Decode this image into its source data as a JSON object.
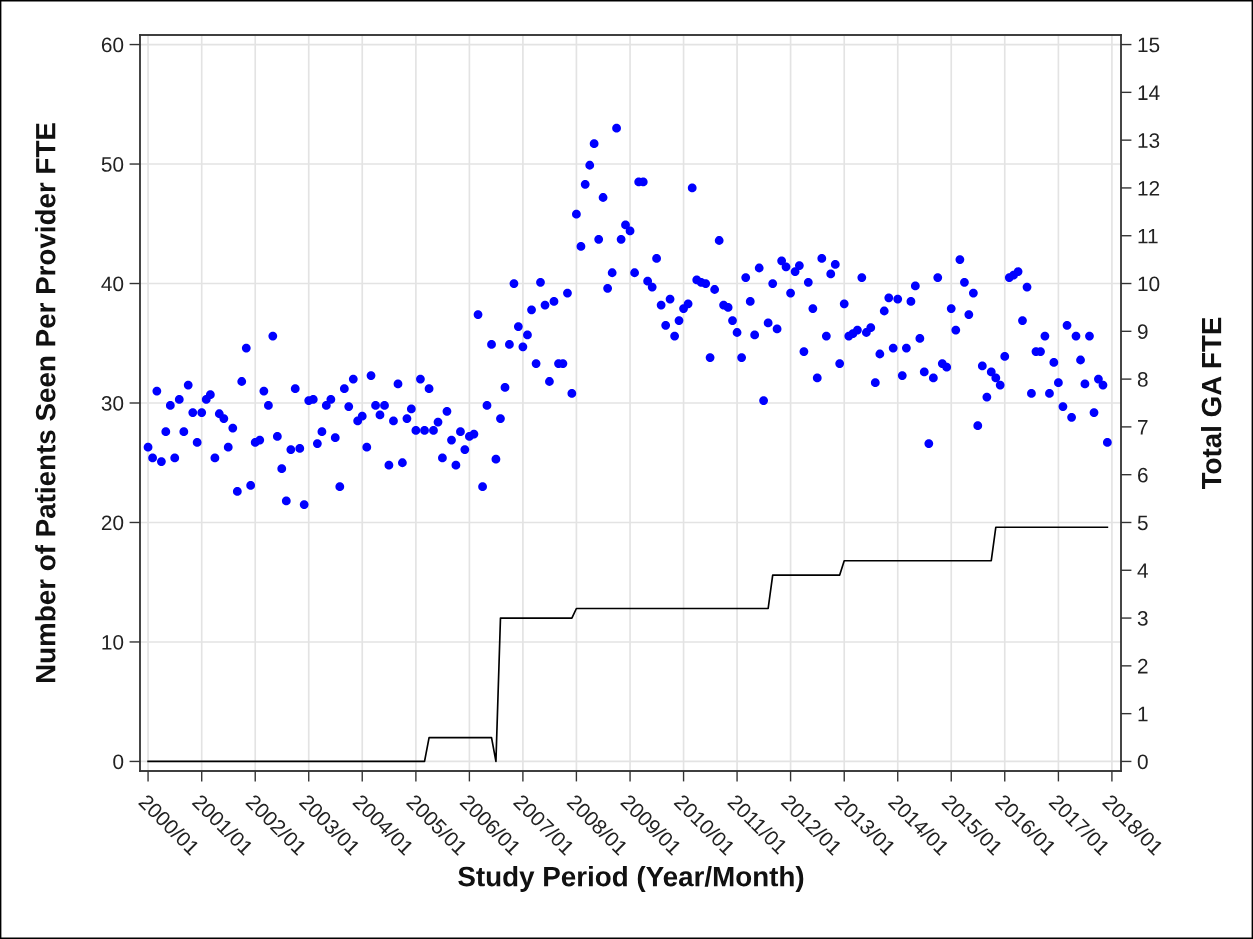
{
  "chart_data": {
    "type": "scatter",
    "xlabel": "Study Period (Year/Month)",
    "ylabel": "Number of Patients Seen Per Provider FTE",
    "y2label": "Total GA FTE",
    "xlim": [
      "1999-11-07",
      "2018-03-04"
    ],
    "xticks": [
      {
        "value": "2000-01",
        "label": "2000/01"
      },
      {
        "value": "2001-01",
        "label": "2001/01"
      },
      {
        "value": "2002-01",
        "label": "2002/01"
      },
      {
        "value": "2003-01",
        "label": "2003/01"
      },
      {
        "value": "2004-01",
        "label": "2004/01"
      },
      {
        "value": "2005-01",
        "label": "2005/01"
      },
      {
        "value": "2006-01",
        "label": "2006/01"
      },
      {
        "value": "2007-01",
        "label": "2007/01"
      },
      {
        "value": "2008-01",
        "label": "2008/01"
      },
      {
        "value": "2009-01",
        "label": "2009/01"
      },
      {
        "value": "2010-01",
        "label": "2010/01"
      },
      {
        "value": "2011-01",
        "label": "2011/01"
      },
      {
        "value": "2012-01",
        "label": "2012/01"
      },
      {
        "value": "2013-01",
        "label": "2013/01"
      },
      {
        "value": "2014-01",
        "label": "2014/01"
      },
      {
        "value": "2015-01",
        "label": "2015/01"
      },
      {
        "value": "2016-01",
        "label": "2016/01"
      },
      {
        "value": "2017-01",
        "label": "2017/01"
      },
      {
        "value": "2018-01",
        "label": "2018/01"
      }
    ],
    "ylim": [
      -0.8,
      60.8
    ],
    "yticks": [
      0,
      10,
      20,
      30,
      40,
      50,
      60
    ],
    "y2lim": [
      -0.2,
      15.2
    ],
    "y2ticks": [
      0,
      1,
      2,
      3,
      4,
      5,
      6,
      7,
      8,
      9,
      10,
      11,
      12,
      13,
      14,
      15
    ],
    "grid": true,
    "series": [
      {
        "color": "#0000ff",
        "marker": "circle",
        "x": [
          "2000-01",
          "2000-02",
          "2000-03",
          "2000-04",
          "2000-05",
          "2000-06",
          "2000-07",
          "2000-08",
          "2000-09",
          "2000-10",
          "2000-11",
          "2000-12",
          "2001-01",
          "2001-02",
          "2001-03",
          "2001-04",
          "2001-05",
          "2001-06",
          "2001-07",
          "2001-08",
          "2001-09",
          "2001-10",
          "2001-11",
          "2001-12",
          "2002-01",
          "2002-02",
          "2002-03",
          "2002-04",
          "2002-05",
          "2002-06",
          "2002-07",
          "2002-08",
          "2002-09",
          "2002-10",
          "2002-11",
          "2002-12",
          "2003-01",
          "2003-02",
          "2003-03",
          "2003-04",
          "2003-05",
          "2003-06",
          "2003-07",
          "2003-08",
          "2003-09",
          "2003-10",
          "2003-11",
          "2003-12",
          "2004-01",
          "2004-02",
          "2004-03",
          "2004-04",
          "2004-05",
          "2004-06",
          "2004-07",
          "2004-08",
          "2004-09",
          "2004-10",
          "2004-11",
          "2004-12",
          "2005-01",
          "2005-02",
          "2005-03",
          "2005-04",
          "2005-05",
          "2005-06",
          "2005-07",
          "2005-08",
          "2005-09",
          "2005-10",
          "2005-11",
          "2005-12",
          "2006-01",
          "2006-02",
          "2006-03",
          "2006-04",
          "2006-05",
          "2006-06",
          "2006-07",
          "2006-08",
          "2006-09",
          "2006-10",
          "2006-11",
          "2006-12",
          "2007-01",
          "2007-02",
          "2007-03",
          "2007-04",
          "2007-05",
          "2007-06",
          "2007-07",
          "2007-08",
          "2007-09",
          "2007-10",
          "2007-11",
          "2007-12",
          "2008-01",
          "2008-02",
          "2008-03",
          "2008-04",
          "2008-05",
          "2008-06",
          "2008-07",
          "2008-08",
          "2008-09",
          "2008-10",
          "2008-11",
          "2008-12",
          "2009-01",
          "2009-02",
          "2009-03",
          "2009-04",
          "2009-05",
          "2009-06",
          "2009-07",
          "2009-08",
          "2009-09",
          "2009-10",
          "2009-11",
          "2009-12",
          "2010-01",
          "2010-02",
          "2010-03",
          "2010-04",
          "2010-05",
          "2010-06",
          "2010-07",
          "2010-08",
          "2010-09",
          "2010-10",
          "2010-11",
          "2010-12",
          "2011-01",
          "2011-02",
          "2011-03",
          "2011-04",
          "2011-05",
          "2011-06",
          "2011-07",
          "2011-08",
          "2011-09",
          "2011-10",
          "2011-11",
          "2011-12",
          "2012-01",
          "2012-02",
          "2012-03",
          "2012-04",
          "2012-05",
          "2012-06",
          "2012-07",
          "2012-08",
          "2012-09",
          "2012-10",
          "2012-11",
          "2012-12",
          "2013-01",
          "2013-02",
          "2013-03",
          "2013-04",
          "2013-05",
          "2013-06",
          "2013-07",
          "2013-08",
          "2013-09",
          "2013-10",
          "2013-11",
          "2013-12",
          "2014-01",
          "2014-02",
          "2014-03",
          "2014-04",
          "2014-05",
          "2014-06",
          "2014-07",
          "2014-08",
          "2014-09",
          "2014-10",
          "2014-11",
          "2014-12",
          "2015-01",
          "2015-02",
          "2015-03",
          "2015-04",
          "2015-05",
          "2015-06",
          "2015-07",
          "2015-08",
          "2015-09",
          "2015-10",
          "2015-11",
          "2015-12",
          "2016-01",
          "2016-02",
          "2016-03",
          "2016-04",
          "2016-05",
          "2016-06",
          "2016-07",
          "2016-08",
          "2016-09",
          "2016-10",
          "2016-11",
          "2016-12",
          "2017-01",
          "2017-02",
          "2017-03",
          "2017-04",
          "2017-05",
          "2017-06",
          "2017-07",
          "2017-08",
          "2017-09",
          "2017-10",
          "2017-11",
          "2017-12"
        ],
        "values": [
          26.3,
          25.4,
          31.0,
          25.1,
          27.6,
          29.8,
          25.4,
          30.3,
          27.6,
          31.5,
          29.2,
          26.7,
          29.2,
          30.3,
          30.7,
          25.4,
          29.1,
          28.7,
          26.3,
          27.9,
          22.6,
          31.8,
          34.6,
          23.1,
          26.7,
          26.9,
          31.0,
          29.8,
          35.6,
          27.2,
          24.5,
          21.8,
          26.1,
          31.2,
          26.2,
          21.5,
          30.2,
          30.3,
          26.6,
          27.6,
          29.8,
          30.3,
          27.1,
          23.0,
          31.2,
          29.7,
          32.0,
          28.5,
          28.9,
          26.3,
          32.3,
          29.8,
          29.0,
          29.8,
          24.8,
          28.5,
          31.6,
          25.0,
          28.7,
          29.5,
          27.7,
          32.0,
          27.7,
          31.2,
          27.7,
          28.4,
          25.4,
          29.3,
          26.9,
          24.8,
          27.6,
          26.1,
          27.2,
          27.4,
          37.4,
          23.0,
          29.8,
          34.9,
          25.3,
          28.7,
          31.3,
          34.9,
          40.0,
          36.4,
          34.7,
          35.7,
          37.8,
          33.3,
          40.1,
          38.2,
          31.8,
          38.5,
          33.3,
          33.3,
          39.2,
          30.8,
          45.8,
          43.1,
          48.3,
          49.9,
          51.7,
          43.7,
          47.2,
          39.6,
          40.9,
          53.0,
          43.7,
          44.9,
          44.4,
          40.9,
          48.5,
          48.5,
          40.2,
          39.7,
          42.1,
          38.2,
          36.5,
          38.7,
          35.6,
          36.9,
          37.9,
          38.3,
          48.0,
          40.3,
          40.1,
          40.0,
          33.8,
          39.5,
          43.6,
          38.2,
          38.0,
          36.9,
          35.9,
          33.8,
          40.5,
          38.5,
          35.7,
          41.3,
          30.2,
          36.7,
          40.0,
          36.2,
          41.9,
          41.4,
          39.2,
          41.0,
          41.5,
          34.3,
          40.1,
          37.9,
          32.1,
          42.1,
          35.6,
          40.8,
          41.6,
          33.3,
          38.3,
          35.6,
          35.8,
          36.1,
          40.5,
          35.9,
          36.3,
          31.7,
          34.1,
          37.7,
          38.8,
          34.6,
          38.7,
          32.3,
          34.6,
          38.5,
          39.8,
          35.4,
          32.6,
          26.6,
          32.1,
          40.5,
          33.3,
          33.0,
          37.9,
          36.1,
          42.0,
          40.1,
          37.4,
          39.2,
          28.1,
          33.1,
          30.5,
          32.6,
          32.1,
          31.5,
          33.9,
          40.5,
          40.7,
          41.0,
          36.9,
          39.7,
          30.8,
          34.3,
          34.3,
          35.6,
          30.8,
          33.4,
          31.7,
          29.7,
          36.5,
          28.8,
          35.6,
          33.6,
          31.6,
          35.6,
          29.2,
          32.0,
          31.5,
          26.7
        ]
      },
      {
        "type": "line",
        "axis": "y2",
        "color": "#000000",
        "line_style": "solid",
        "x": [
          "2000-01",
          "2005-03",
          "2005-04",
          "2006-06",
          "2006-07",
          "2006-08",
          "2007-12",
          "2008-01",
          "2011-08",
          "2011-09",
          "2012-12",
          "2013-01",
          "2015-10",
          "2015-11",
          "2017-12"
        ],
        "values": [
          0,
          0,
          0.5,
          0.5,
          0,
          3.0,
          3.0,
          3.2,
          3.2,
          3.9,
          3.9,
          4.2,
          4.2,
          4.9,
          4.9
        ]
      }
    ]
  }
}
